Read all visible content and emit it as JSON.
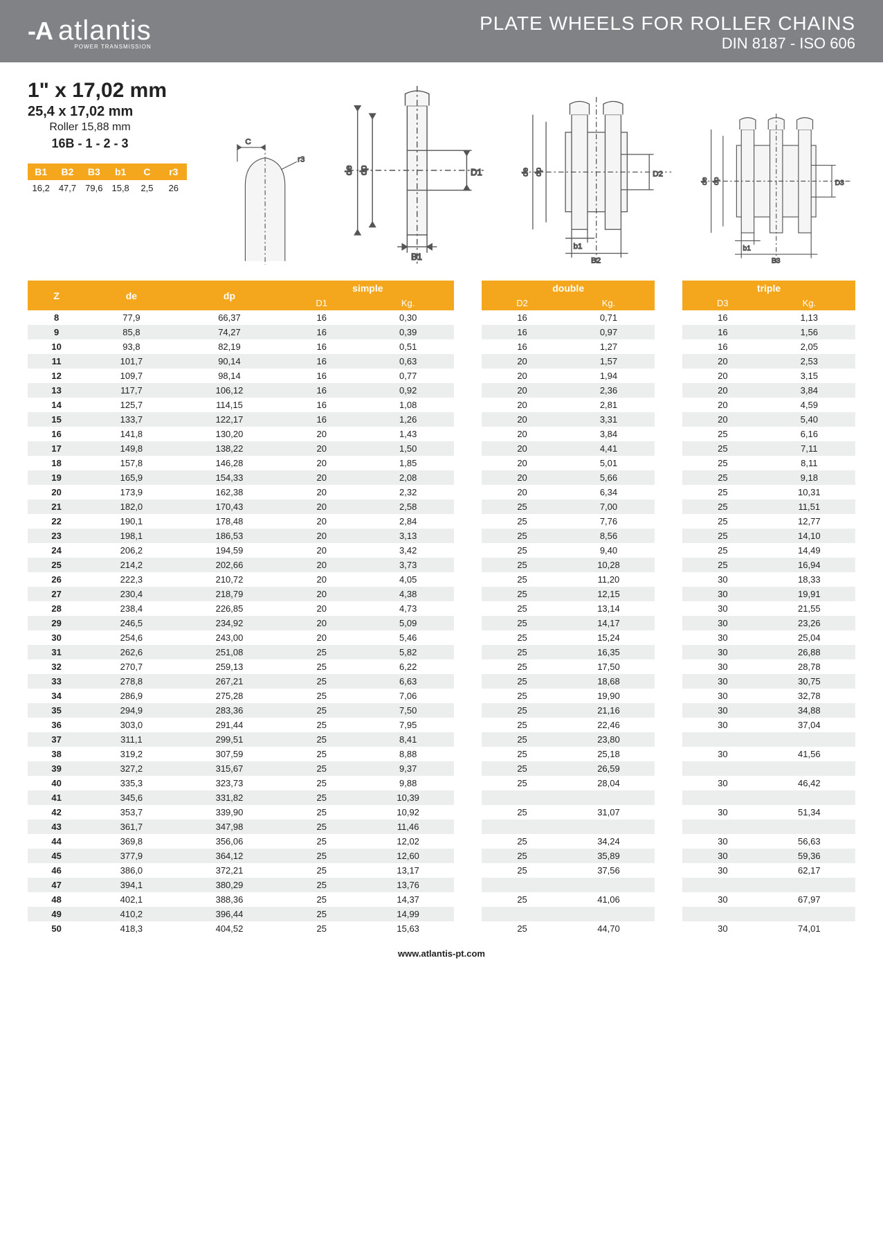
{
  "header": {
    "brand": "atlantis",
    "brand_sub": "POWER TRANSMISSION",
    "title": "PLATE WHEELS FOR ROLLER CHAINS",
    "subtitle": "DIN 8187 - ISO 606"
  },
  "spec": {
    "main": "1\" x 17,02 mm",
    "line2": "25,4 x 17,02 mm",
    "line3": "Roller 15,88 mm",
    "line4": "16B - 1 - 2 - 3"
  },
  "params": {
    "headers": [
      "B1",
      "B2",
      "B3",
      "b1",
      "C",
      "r3"
    ],
    "values": [
      "16,2",
      "47,7",
      "79,6",
      "15,8",
      "2,5",
      "26"
    ]
  },
  "diagram_labels": {
    "c": "C",
    "r3": "r3",
    "de": "de",
    "dp": "dp",
    "d1": "D1",
    "d2": "D2",
    "d3": "D3",
    "b1l": "B1",
    "b1s": "b1",
    "b2": "B2",
    "b3": "B3"
  },
  "table": {
    "group_labels": [
      "simple",
      "double",
      "triple"
    ],
    "sub_headers": {
      "z": "Z",
      "de": "de",
      "dp": "dp",
      "d1": "D1",
      "kg": "Kg.",
      "d2": "D2",
      "d3": "D3"
    },
    "rows": [
      {
        "z": "8",
        "de": "77,9",
        "dp": "66,37",
        "d1": "16",
        "kg1": "0,30",
        "d2": "16",
        "kg2": "0,71",
        "d3": "16",
        "kg3": "1,13"
      },
      {
        "z": "9",
        "de": "85,8",
        "dp": "74,27",
        "d1": "16",
        "kg1": "0,39",
        "d2": "16",
        "kg2": "0,97",
        "d3": "16",
        "kg3": "1,56"
      },
      {
        "z": "10",
        "de": "93,8",
        "dp": "82,19",
        "d1": "16",
        "kg1": "0,51",
        "d2": "16",
        "kg2": "1,27",
        "d3": "16",
        "kg3": "2,05"
      },
      {
        "z": "11",
        "de": "101,7",
        "dp": "90,14",
        "d1": "16",
        "kg1": "0,63",
        "d2": "20",
        "kg2": "1,57",
        "d3": "20",
        "kg3": "2,53"
      },
      {
        "z": "12",
        "de": "109,7",
        "dp": "98,14",
        "d1": "16",
        "kg1": "0,77",
        "d2": "20",
        "kg2": "1,94",
        "d3": "20",
        "kg3": "3,15"
      },
      {
        "z": "13",
        "de": "117,7",
        "dp": "106,12",
        "d1": "16",
        "kg1": "0,92",
        "d2": "20",
        "kg2": "2,36",
        "d3": "20",
        "kg3": "3,84"
      },
      {
        "z": "14",
        "de": "125,7",
        "dp": "114,15",
        "d1": "16",
        "kg1": "1,08",
        "d2": "20",
        "kg2": "2,81",
        "d3": "20",
        "kg3": "4,59"
      },
      {
        "z": "15",
        "de": "133,7",
        "dp": "122,17",
        "d1": "16",
        "kg1": "1,26",
        "d2": "20",
        "kg2": "3,31",
        "d3": "20",
        "kg3": "5,40"
      },
      {
        "z": "16",
        "de": "141,8",
        "dp": "130,20",
        "d1": "20",
        "kg1": "1,43",
        "d2": "20",
        "kg2": "3,84",
        "d3": "25",
        "kg3": "6,16"
      },
      {
        "z": "17",
        "de": "149,8",
        "dp": "138,22",
        "d1": "20",
        "kg1": "1,50",
        "d2": "20",
        "kg2": "4,41",
        "d3": "25",
        "kg3": "7,11"
      },
      {
        "z": "18",
        "de": "157,8",
        "dp": "146,28",
        "d1": "20",
        "kg1": "1,85",
        "d2": "20",
        "kg2": "5,01",
        "d3": "25",
        "kg3": "8,11"
      },
      {
        "z": "19",
        "de": "165,9",
        "dp": "154,33",
        "d1": "20",
        "kg1": "2,08",
        "d2": "20",
        "kg2": "5,66",
        "d3": "25",
        "kg3": "9,18"
      },
      {
        "z": "20",
        "de": "173,9",
        "dp": "162,38",
        "d1": "20",
        "kg1": "2,32",
        "d2": "20",
        "kg2": "6,34",
        "d3": "25",
        "kg3": "10,31"
      },
      {
        "z": "21",
        "de": "182,0",
        "dp": "170,43",
        "d1": "20",
        "kg1": "2,58",
        "d2": "25",
        "kg2": "7,00",
        "d3": "25",
        "kg3": "11,51"
      },
      {
        "z": "22",
        "de": "190,1",
        "dp": "178,48",
        "d1": "20",
        "kg1": "2,84",
        "d2": "25",
        "kg2": "7,76",
        "d3": "25",
        "kg3": "12,77"
      },
      {
        "z": "23",
        "de": "198,1",
        "dp": "186,53",
        "d1": "20",
        "kg1": "3,13",
        "d2": "25",
        "kg2": "8,56",
        "d3": "25",
        "kg3": "14,10"
      },
      {
        "z": "24",
        "de": "206,2",
        "dp": "194,59",
        "d1": "20",
        "kg1": "3,42",
        "d2": "25",
        "kg2": "9,40",
        "d3": "25",
        "kg3": "14,49"
      },
      {
        "z": "25",
        "de": "214,2",
        "dp": "202,66",
        "d1": "20",
        "kg1": "3,73",
        "d2": "25",
        "kg2": "10,28",
        "d3": "25",
        "kg3": "16,94"
      },
      {
        "z": "26",
        "de": "222,3",
        "dp": "210,72",
        "d1": "20",
        "kg1": "4,05",
        "d2": "25",
        "kg2": "11,20",
        "d3": "30",
        "kg3": "18,33"
      },
      {
        "z": "27",
        "de": "230,4",
        "dp": "218,79",
        "d1": "20",
        "kg1": "4,38",
        "d2": "25",
        "kg2": "12,15",
        "d3": "30",
        "kg3": "19,91"
      },
      {
        "z": "28",
        "de": "238,4",
        "dp": "226,85",
        "d1": "20",
        "kg1": "4,73",
        "d2": "25",
        "kg2": "13,14",
        "d3": "30",
        "kg3": "21,55"
      },
      {
        "z": "29",
        "de": "246,5",
        "dp": "234,92",
        "d1": "20",
        "kg1": "5,09",
        "d2": "25",
        "kg2": "14,17",
        "d3": "30",
        "kg3": "23,26"
      },
      {
        "z": "30",
        "de": "254,6",
        "dp": "243,00",
        "d1": "20",
        "kg1": "5,46",
        "d2": "25",
        "kg2": "15,24",
        "d3": "30",
        "kg3": "25,04"
      },
      {
        "z": "31",
        "de": "262,6",
        "dp": "251,08",
        "d1": "25",
        "kg1": "5,82",
        "d2": "25",
        "kg2": "16,35",
        "d3": "30",
        "kg3": "26,88"
      },
      {
        "z": "32",
        "de": "270,7",
        "dp": "259,13",
        "d1": "25",
        "kg1": "6,22",
        "d2": "25",
        "kg2": "17,50",
        "d3": "30",
        "kg3": "28,78"
      },
      {
        "z": "33",
        "de": "278,8",
        "dp": "267,21",
        "d1": "25",
        "kg1": "6,63",
        "d2": "25",
        "kg2": "18,68",
        "d3": "30",
        "kg3": "30,75"
      },
      {
        "z": "34",
        "de": "286,9",
        "dp": "275,28",
        "d1": "25",
        "kg1": "7,06",
        "d2": "25",
        "kg2": "19,90",
        "d3": "30",
        "kg3": "32,78"
      },
      {
        "z": "35",
        "de": "294,9",
        "dp": "283,36",
        "d1": "25",
        "kg1": "7,50",
        "d2": "25",
        "kg2": "21,16",
        "d3": "30",
        "kg3": "34,88"
      },
      {
        "z": "36",
        "de": "303,0",
        "dp": "291,44",
        "d1": "25",
        "kg1": "7,95",
        "d2": "25",
        "kg2": "22,46",
        "d3": "30",
        "kg3": "37,04"
      },
      {
        "z": "37",
        "de": "311,1",
        "dp": "299,51",
        "d1": "25",
        "kg1": "8,41",
        "d2": "25",
        "kg2": "23,80",
        "d3": "",
        "kg3": ""
      },
      {
        "z": "38",
        "de": "319,2",
        "dp": "307,59",
        "d1": "25",
        "kg1": "8,88",
        "d2": "25",
        "kg2": "25,18",
        "d3": "30",
        "kg3": "41,56"
      },
      {
        "z": "39",
        "de": "327,2",
        "dp": "315,67",
        "d1": "25",
        "kg1": "9,37",
        "d2": "25",
        "kg2": "26,59",
        "d3": "",
        "kg3": ""
      },
      {
        "z": "40",
        "de": "335,3",
        "dp": "323,73",
        "d1": "25",
        "kg1": "9,88",
        "d2": "25",
        "kg2": "28,04",
        "d3": "30",
        "kg3": "46,42"
      },
      {
        "z": "41",
        "de": "345,6",
        "dp": "331,82",
        "d1": "25",
        "kg1": "10,39",
        "d2": "",
        "kg2": "",
        "d3": "",
        "kg3": ""
      },
      {
        "z": "42",
        "de": "353,7",
        "dp": "339,90",
        "d1": "25",
        "kg1": "10,92",
        "d2": "25",
        "kg2": "31,07",
        "d3": "30",
        "kg3": "51,34"
      },
      {
        "z": "43",
        "de": "361,7",
        "dp": "347,98",
        "d1": "25",
        "kg1": "11,46",
        "d2": "",
        "kg2": "",
        "d3": "",
        "kg3": ""
      },
      {
        "z": "44",
        "de": "369,8",
        "dp": "356,06",
        "d1": "25",
        "kg1": "12,02",
        "d2": "25",
        "kg2": "34,24",
        "d3": "30",
        "kg3": "56,63"
      },
      {
        "z": "45",
        "de": "377,9",
        "dp": "364,12",
        "d1": "25",
        "kg1": "12,60",
        "d2": "25",
        "kg2": "35,89",
        "d3": "30",
        "kg3": "59,36"
      },
      {
        "z": "46",
        "de": "386,0",
        "dp": "372,21",
        "d1": "25",
        "kg1": "13,17",
        "d2": "25",
        "kg2": "37,56",
        "d3": "30",
        "kg3": "62,17"
      },
      {
        "z": "47",
        "de": "394,1",
        "dp": "380,29",
        "d1": "25",
        "kg1": "13,76",
        "d2": "",
        "kg2": "",
        "d3": "",
        "kg3": ""
      },
      {
        "z": "48",
        "de": "402,1",
        "dp": "388,36",
        "d1": "25",
        "kg1": "14,37",
        "d2": "25",
        "kg2": "41,06",
        "d3": "30",
        "kg3": "67,97"
      },
      {
        "z": "49",
        "de": "410,2",
        "dp": "396,44",
        "d1": "25",
        "kg1": "14,99",
        "d2": "",
        "kg2": "",
        "d3": "",
        "kg3": ""
      },
      {
        "z": "50",
        "de": "418,3",
        "dp": "404,52",
        "d1": "25",
        "kg1": "15,63",
        "d2": "25",
        "kg2": "44,70",
        "d3": "30",
        "kg3": "74,01"
      }
    ]
  },
  "footer": "www.atlantis-pt.com",
  "colors": {
    "header_bg": "#808285",
    "accent": "#f4a71d",
    "row_alt": "#eceded"
  }
}
